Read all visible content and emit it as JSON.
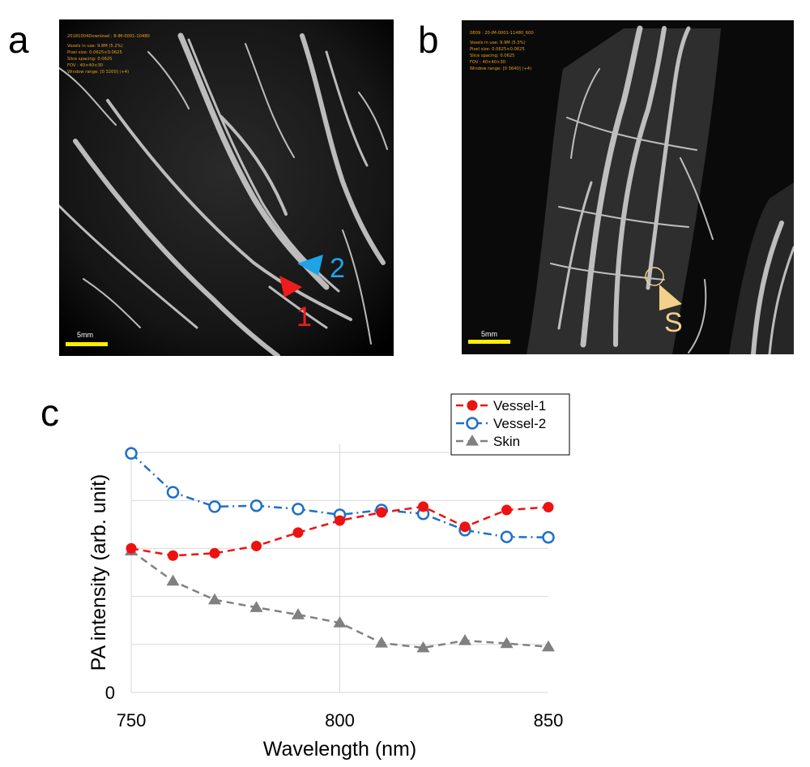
{
  "panels": {
    "a": {
      "letter": "a",
      "overlay_lines": [
        "20181004Download : 8-IM-0001-10480",
        "Voxels in use: 9.8M (5.2%)",
        "Pixel size: 0.0625×0.0625",
        "Slice spacing: 0.0625",
        "FOV : 40×40×30",
        "Window range: [0  3200]  (+4)"
      ],
      "scale_label": "5mm",
      "markers": [
        {
          "label": "1",
          "color": "#ee1c1c"
        },
        {
          "label": "2",
          "color": "#1fa3e8"
        }
      ]
    },
    "b": {
      "letter": "b",
      "overlay_lines": [
        "0809 : 20-IM-0001-11480_600",
        "Voxels in use: 9.9M (5.3%)",
        "Pixel size: 0.0625×0.0625",
        "Slice spacing: 0.0625",
        "FOV : 40×40×30",
        "Window range: [0  3640]  (+4)"
      ],
      "scale_label": "5mm",
      "markers": [
        {
          "label": "S",
          "color": "#f5d08a"
        }
      ]
    },
    "c": {
      "letter": "c"
    }
  },
  "chart_data": {
    "type": "line",
    "title": "",
    "xlabel": "Wavelength (nm)",
    "ylabel": "PA intensity (arb. unit)",
    "xlim": [
      750,
      850
    ],
    "ylim": [
      0,
      5
    ],
    "x_ticks": [
      750,
      800,
      850
    ],
    "y_ticks_labeled": [
      0
    ],
    "y_gridlines": [
      1,
      2,
      3,
      4,
      5
    ],
    "x_gridlines": [
      800
    ],
    "grid": true,
    "legend_position": "top-right",
    "x": [
      750,
      760,
      770,
      780,
      790,
      800,
      810,
      820,
      830,
      840,
      850
    ],
    "series": [
      {
        "name": "Vessel-1",
        "color": "#ee1111",
        "marker": "filled-circle",
        "line": "dashed",
        "values": [
          3.0,
          2.85,
          2.9,
          3.05,
          3.33,
          3.58,
          3.75,
          3.87,
          3.45,
          3.8,
          3.86
        ]
      },
      {
        "name": "Vessel-2",
        "color": "#1f6fc8",
        "marker": "open-circle",
        "line": "dash-dot",
        "values": [
          4.98,
          4.17,
          3.87,
          3.89,
          3.82,
          3.7,
          3.8,
          3.72,
          3.38,
          3.24,
          3.23
        ]
      },
      {
        "name": "Skin",
        "color": "#808080",
        "marker": "filled-triangle",
        "line": "dashed",
        "values": [
          2.95,
          2.32,
          1.93,
          1.77,
          1.62,
          1.45,
          1.03,
          0.93,
          1.08,
          1.02,
          0.95
        ]
      }
    ]
  }
}
